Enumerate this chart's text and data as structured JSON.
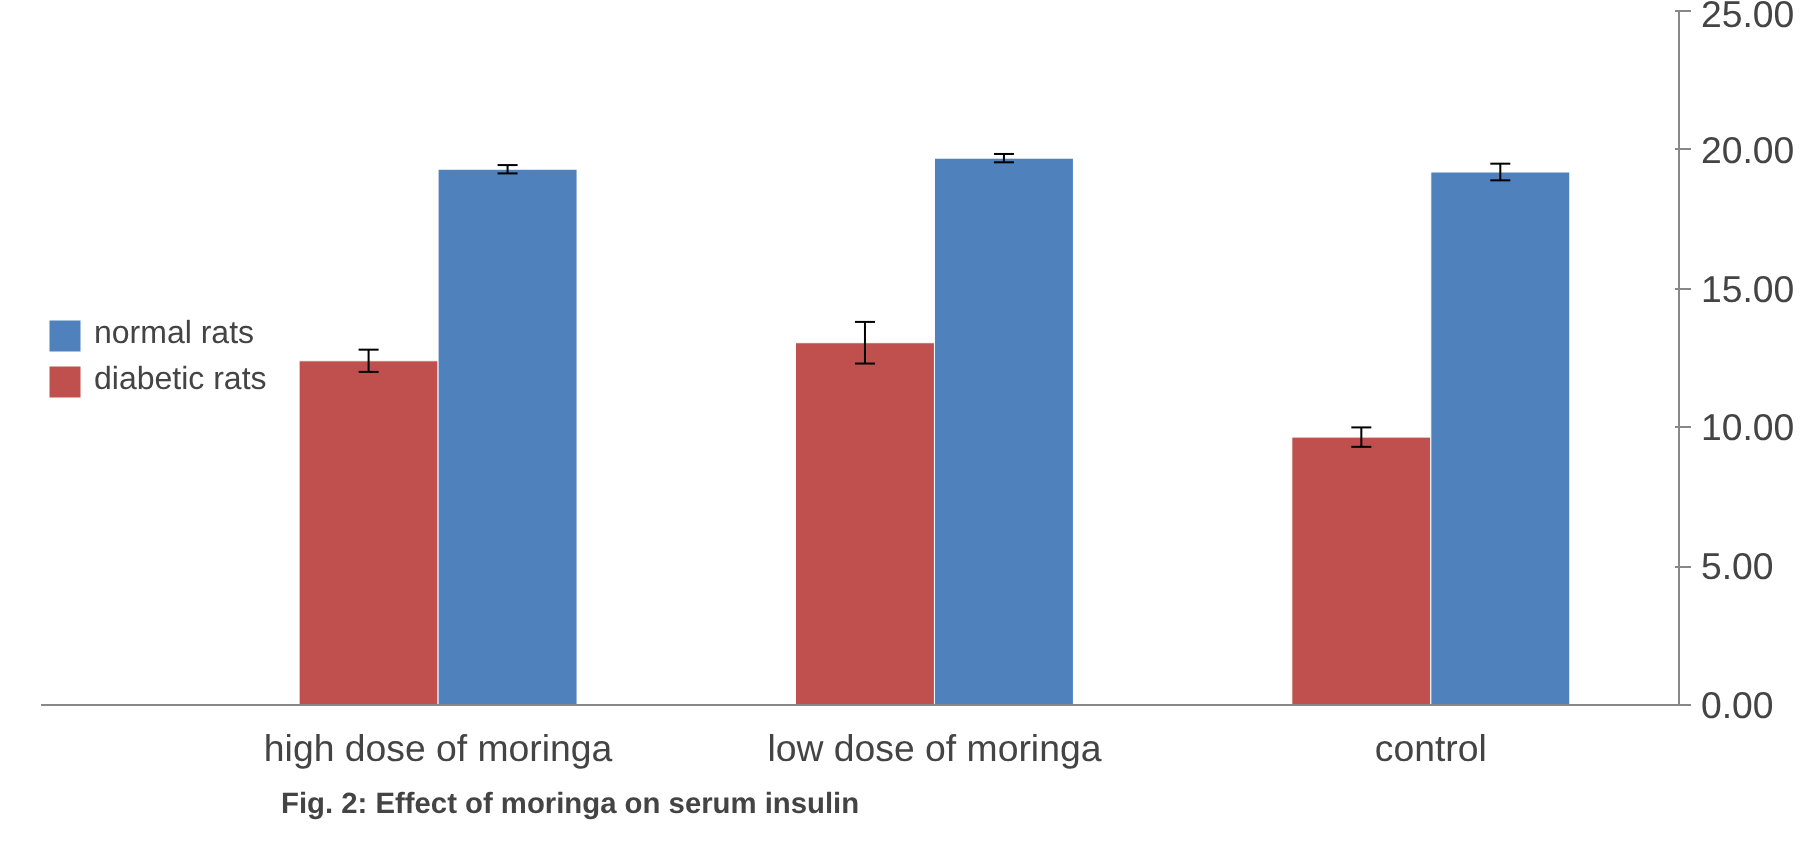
{
  "chart_data": {
    "type": "bar",
    "title": "Fig. 2: Effect of moringa on serum insulin",
    "categories": [
      "high dose of moringa",
      "low dose of moringa",
      "control"
    ],
    "series": [
      {
        "name": "diabetic rats",
        "color": "#c0504d",
        "values": [
          12.4,
          13.05,
          9.65
        ],
        "errors": [
          0.4,
          0.75,
          0.35
        ]
      },
      {
        "name": "normal rats",
        "color": "#4f81bd",
        "values": [
          19.3,
          19.7,
          19.2
        ],
        "errors": [
          0.15,
          0.15,
          0.3
        ]
      }
    ],
    "ylim": [
      0,
      25
    ],
    "yticks": [
      {
        "value": 0,
        "label": "0.00"
      },
      {
        "value": 5,
        "label": "5.00"
      },
      {
        "value": 10,
        "label": "10.00"
      },
      {
        "value": 15,
        "label": "15.00"
      },
      {
        "value": 20,
        "label": "20.00"
      },
      {
        "value": 25,
        "label": "25.00"
      }
    ],
    "grid": false,
    "legend": "left"
  }
}
